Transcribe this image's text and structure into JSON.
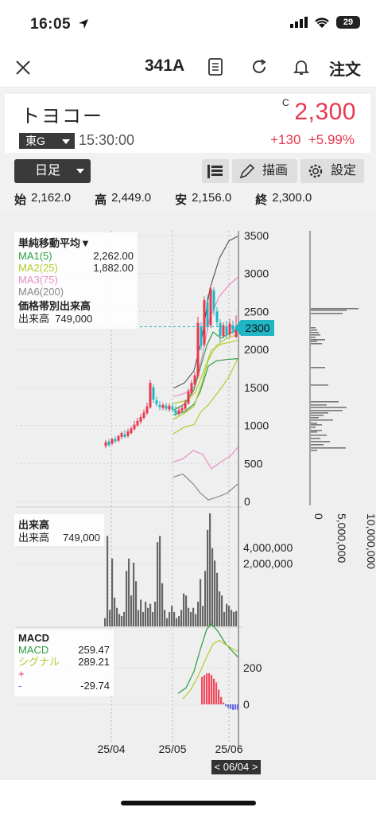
{
  "status": {
    "time": "16:05",
    "battery": "29"
  },
  "nav": {
    "ticker": "341A",
    "order_label": "注文"
  },
  "stock": {
    "name": "トヨコー",
    "market": "東G",
    "time": "15:30:00",
    "price_flag": "C",
    "price": "2,300",
    "change": "+130",
    "change_pct": "+5.99%"
  },
  "toolbar": {
    "period": "日足",
    "draw_label": "描画",
    "settings_label": "設定"
  },
  "ohlc": {
    "open_label": "始",
    "open": "2,162.0",
    "high_label": "高",
    "high": "2,449.0",
    "low_label": "安",
    "low": "2,156.0",
    "close_label": "終",
    "close": "2,300.0"
  },
  "legend_main": {
    "title": "単純移動平均▼",
    "ma1_label": "MA1(5)",
    "ma1_value": "2,262.00",
    "ma2_label": "MA2(25)",
    "ma2_value": "1,882.00",
    "ma3_label": "MA3(75)",
    "ma6_label": "MA6(200)",
    "vp_title": "価格帯別出来高",
    "vol_label": "出来高",
    "vol_value": "749,000"
  },
  "legend_vol": {
    "title": "出来高",
    "vol_label": "出来高",
    "vol_value": "749,000"
  },
  "legend_macd": {
    "title": "MACD",
    "macd_label": "MACD",
    "macd_value": "259.47",
    "signal_label": "シグナル",
    "signal_value": "289.21",
    "plus_label": "+",
    "minus_label": "-",
    "minus_value": "-29.74"
  },
  "current_price_tag": "2300",
  "date_cursor": "< 06/04 >",
  "axes": {
    "price_ticks": [
      "3500",
      "3000",
      "2500",
      "2000",
      "1500",
      "1000",
      "500",
      "0"
    ],
    "volume_ticks": [
      "4,000,000",
      "2,000,000"
    ],
    "macd_ticks": [
      "200",
      "0"
    ],
    "vp_ticks": [
      "0",
      "5,000,000",
      "10,000,000"
    ],
    "date_ticks": [
      "25/04",
      "25/05",
      "25/06"
    ]
  },
  "colors": {
    "up": "#e8384f",
    "down": "#1fb5c4",
    "ma1": "#2e9e3f",
    "ma2": "#b4cc2e",
    "ma3": "#e98fc6",
    "ma6": "#888888"
  },
  "chart_data": [
    {
      "type": "line",
      "title": "単純移動平均",
      "x": [
        "25/04",
        "25/05",
        "25/06"
      ],
      "ylim": [
        0,
        3500
      ],
      "series": [
        {
          "name": "MA1(5)",
          "last": 2262.0
        },
        {
          "name": "MA2(25)",
          "last": 1882.0
        },
        {
          "name": "MA3(75)"
        },
        {
          "name": "MA6(200)"
        }
      ],
      "price_tag": 2300
    },
    {
      "type": "bar",
      "title": "出来高",
      "ylim": [
        0,
        5500000
      ],
      "values": [
        400000,
        4400000,
        800000,
        3300000,
        1400000,
        900000,
        600000,
        500000,
        700000,
        2700000,
        3300000,
        1500000,
        3100000,
        2200000,
        800000,
        1300000,
        700000,
        1200000,
        900000,
        1100000,
        700000,
        1200000,
        4100000,
        4400000,
        2100000,
        800000,
        400000,
        700000,
        1000000,
        700000,
        400000,
        500000,
        800000,
        1600000,
        1500000,
        900000,
        700000,
        900000,
        600000,
        1200000,
        2300000,
        1000000,
        2700000,
        4700000,
        5500000,
        3800000,
        3200000,
        2600000,
        1700000,
        1500000,
        700000,
        1100000,
        1000000,
        800000,
        700000,
        749000
      ]
    },
    {
      "type": "line",
      "title": "MACD",
      "ylim": [
        -100,
        400
      ],
      "series": [
        {
          "name": "MACD",
          "last": 259.47
        },
        {
          "name": "シグナル",
          "last": 289.21
        }
      ],
      "histogram_last": -29.74
    }
  ]
}
